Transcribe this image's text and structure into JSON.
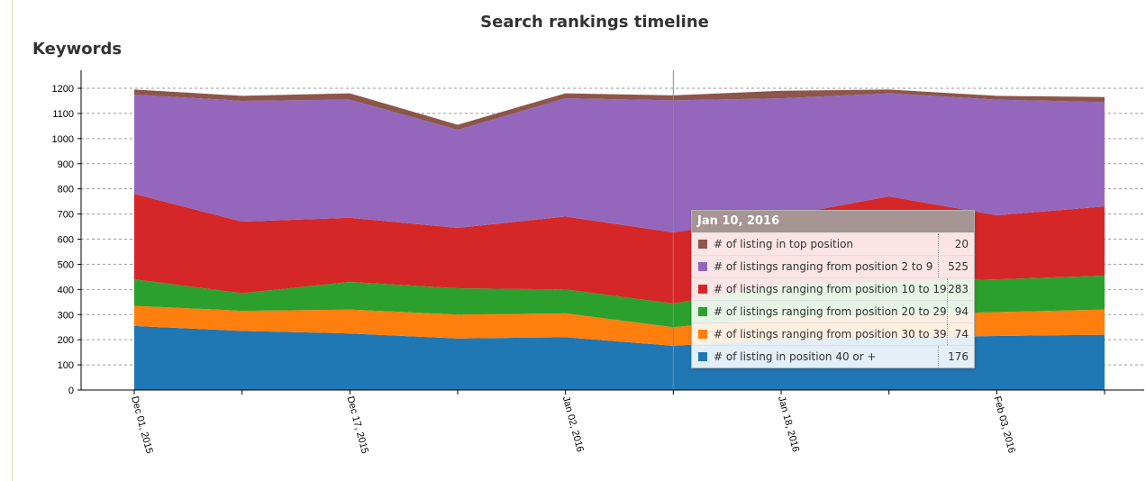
{
  "page": {
    "title": "Search rankings timeline",
    "section": "Keywords"
  },
  "colors": {
    "top": "#8c564b",
    "p2_9": "#9467bd",
    "p10_19": "#d62728",
    "p20_29": "#2ca02c",
    "p30_39": "#ff7f0e",
    "p40": "#1f77b4"
  },
  "chart_data": {
    "type": "area",
    "stacked": true,
    "title": "Search rankings timeline",
    "x": [
      "2015-12-01",
      "2015-12-09",
      "2015-12-17",
      "2015-12-25",
      "2016-01-02",
      "2016-01-10",
      "2016-01-18",
      "2016-01-26",
      "2016-02-03",
      "2016-02-11"
    ],
    "x_tick_labels": [
      "Dec 01, 2015",
      "",
      "Dec 17, 2015",
      "",
      "Jan 02, 2016",
      "",
      "Jan 18, 2016",
      "",
      "Feb 03, 2016",
      ""
    ],
    "ylim": [
      0,
      1200
    ],
    "y_ticks": [
      0,
      100,
      200,
      300,
      400,
      500,
      600,
      700,
      800,
      900,
      1000,
      1100,
      1200
    ],
    "grid": "horizontal dashed",
    "series": [
      {
        "name": "# of listing in position 40 or +",
        "color_key": "p40",
        "values": [
          255,
          235,
          225,
          205,
          210,
          176,
          200,
          210,
          215,
          220
        ]
      },
      {
        "name": "# of listings ranging from position 30 to 39",
        "color_key": "p30_39",
        "values": [
          80,
          80,
          95,
          95,
          95,
          74,
          90,
          90,
          95,
          100
        ]
      },
      {
        "name": "# of listings ranging from position 20 to 29",
        "color_key": "p20_29",
        "values": [
          105,
          70,
          110,
          105,
          95,
          94,
          130,
          130,
          130,
          135
        ]
      },
      {
        "name": "# of listings ranging from position 10 to 19",
        "color_key": "p10_19",
        "values": [
          340,
          285,
          255,
          240,
          290,
          283,
          270,
          340,
          255,
          275
        ]
      },
      {
        "name": "# of listings ranging from position 2 to 9",
        "color_key": "p2_9",
        "values": [
          395,
          480,
          470,
          390,
          470,
          525,
          470,
          410,
          460,
          415
        ]
      },
      {
        "name": "# of listing in top position",
        "color_key": "top",
        "values": [
          20,
          20,
          25,
          20,
          20,
          20,
          30,
          15,
          15,
          20
        ]
      }
    ]
  },
  "tooltip": {
    "title": "Jan 10, 2016",
    "rows": [
      {
        "label": "# of listing in top position",
        "value": "20",
        "color_key": "top"
      },
      {
        "label": "# of listings ranging from position 2 to 9",
        "value": "525",
        "color_key": "p2_9"
      },
      {
        "label": "# of listings ranging from position 10 to 19",
        "value": "283",
        "color_key": "p10_19"
      },
      {
        "label": "# of listings ranging from position 20 to 29",
        "value": "94",
        "color_key": "p20_29"
      },
      {
        "label": "# of listings ranging from position 30 to 39",
        "value": "74",
        "color_key": "p30_39"
      },
      {
        "label": "# of listing in position 40 or +",
        "value": "176",
        "color_key": "p40"
      }
    ]
  }
}
